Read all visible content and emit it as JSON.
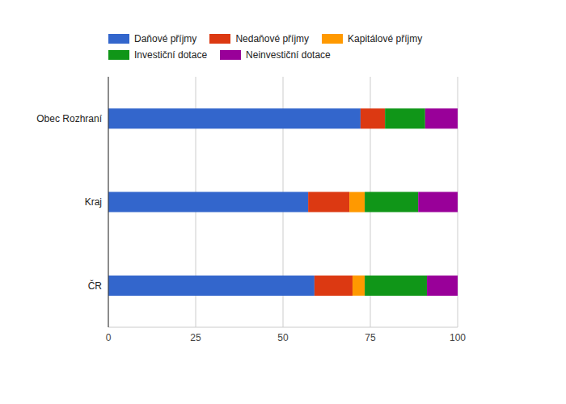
{
  "chart_data": {
    "type": "bar",
    "orientation": "horizontal",
    "stacked": true,
    "grid": true,
    "legend": "top",
    "categories": [
      "Obec Rozhraní",
      "Kraj",
      "ČR"
    ],
    "series": [
      {
        "name": "Daňové příjmy",
        "color": "#3366cc",
        "values": [
          72.2,
          57.2,
          59.0
        ]
      },
      {
        "name": "Nedaňové příjmy",
        "color": "#dc3912",
        "values": [
          7.0,
          11.8,
          10.9
        ]
      },
      {
        "name": "Kapitálové příjmy",
        "color": "#ff9900",
        "values": [
          0,
          4.4,
          3.5
        ]
      },
      {
        "name": "Investiční dotace",
        "color": "#109618",
        "values": [
          11.5,
          15.3,
          17.8
        ]
      },
      {
        "name": "Neinvestiční dotace",
        "color": "#990099",
        "values": [
          9.3,
          11.3,
          8.8
        ]
      }
    ],
    "xlim": [
      0,
      100
    ],
    "xticks": [
      0,
      25,
      50,
      75,
      100
    ]
  }
}
